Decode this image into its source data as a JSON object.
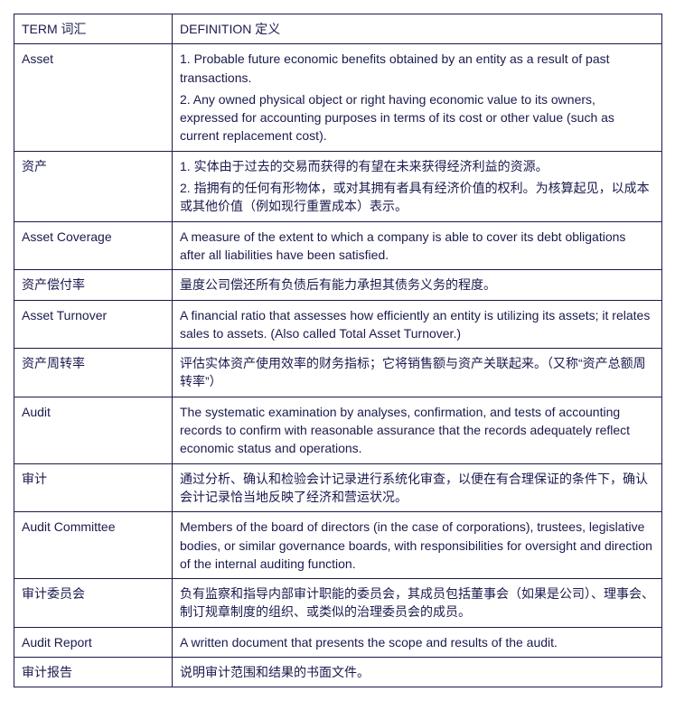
{
  "header": {
    "term": "TERM 词汇",
    "definition": "DEFINITION 定义"
  },
  "rows": [
    {
      "term": "Asset",
      "defs": [
        "1. Probable future economic benefits obtained by an entity as a result of past transactions.",
        "2. Any owned physical object or right having economic value to its owners, expressed for accounting purposes in terms of its cost or other value (such as current replacement cost)."
      ]
    },
    {
      "term": "资产",
      "defs": [
        "1. 实体由于过去的交易而获得的有望在未来获得经济利益的资源。",
        "2. 指拥有的任何有形物体，或对其拥有者具有经济价值的权利。为核算起见，以成本或其他价值（例如现行重置成本）表示。"
      ]
    },
    {
      "term": "Asset Coverage",
      "defs": [
        "A measure of the extent to which a company is able to cover its debt obligations after all liabilities have been satisfied."
      ]
    },
    {
      "term": "资产偿付率",
      "defs": [
        "量度公司偿还所有负债后有能力承担其债务义务的程度。"
      ]
    },
    {
      "term": "Asset Turnover",
      "defs": [
        "A financial ratio that assesses how efficiently an entity is utilizing its assets; it relates sales to assets. (Also called Total Asset Turnover.)"
      ]
    },
    {
      "term": "资产周转率",
      "defs": [
        "评估实体资产使用效率的财务指标；它将销售额与资产关联起来。（又称“资产总额周转率”）"
      ]
    },
    {
      "term": "Audit",
      "defs": [
        "The systematic examination by analyses, confirmation, and tests of accounting records to confirm with reasonable assurance that the records adequately reflect economic status and operations."
      ]
    },
    {
      "term": "审计",
      "defs": [
        "通过分析、确认和检验会计记录进行系统化审查，以便在有合理保证的条件下，确认会计记录恰当地反映了经济和营运状况。"
      ]
    },
    {
      "term": "Audit Committee",
      "defs": [
        "Members of the board of directors (in the case of corporations), trustees, legislative bodies, or similar governance boards, with responsibilities for oversight and direction of the internal auditing function."
      ]
    },
    {
      "term": "审计委员会",
      "defs": [
        "负有监察和指导内部审计职能的委员会，其成员包括董事会（如果是公司）、理事会、制订规章制度的组织、或类似的治理委员会的成员。"
      ]
    },
    {
      "term": "Audit Report",
      "defs": [
        "A written document that presents the scope and results of the audit."
      ]
    },
    {
      "term": "审计报告",
      "defs": [
        "说明审计范围和结果的书面文件。"
      ]
    }
  ]
}
